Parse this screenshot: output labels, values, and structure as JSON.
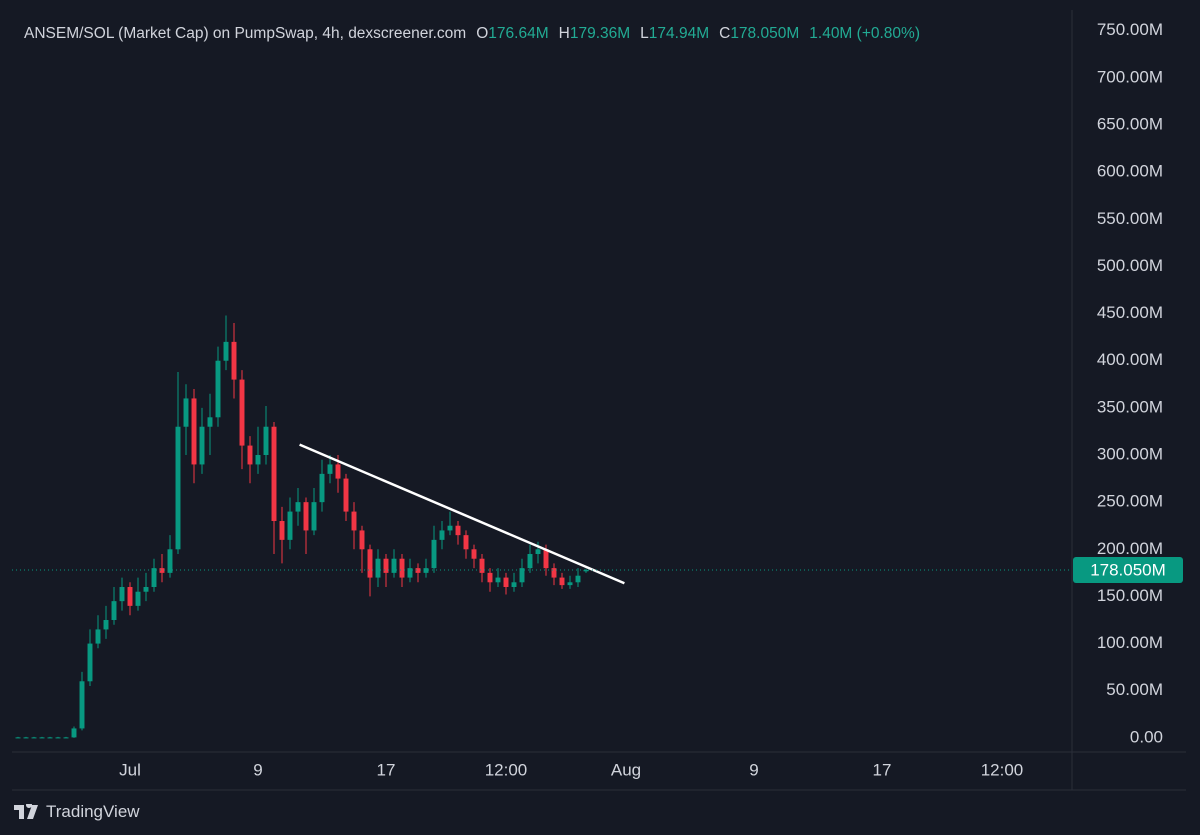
{
  "chart_data": {
    "type": "candlestick",
    "title": "ANSEM/SOL (Market Cap) on PumpSwap, 4h, dexscreener.com",
    "legend": {
      "o_label": "O",
      "o": "176.64M",
      "h_label": "H",
      "h": "179.36M",
      "l_label": "L",
      "l": "174.94M",
      "c_label": "C",
      "c": "178.050M",
      "change": "1.40M (+0.80%)"
    },
    "up_color": "#089981",
    "down_color": "#f23645",
    "x": [
      -6,
      -5.5,
      -5,
      -4.5,
      -4,
      -3.5,
      -3,
      -2.5,
      -2,
      -1.5,
      -1,
      -0.5,
      0,
      0.5,
      1,
      1.5,
      2,
      2.5,
      3,
      3.5,
      4,
      4.5,
      5,
      5.5,
      6,
      6.5,
      7,
      7.5,
      8,
      8.5,
      9,
      9.5,
      10,
      10.5,
      11,
      11.5,
      12,
      12.5,
      13,
      13.5,
      14,
      14.5,
      15,
      15.5,
      16,
      16.5,
      17,
      17.5,
      18,
      18.5,
      19,
      19.5,
      20,
      20.5,
      21,
      21.5,
      22,
      22.5,
      23,
      23.5,
      24,
      24.5,
      25,
      25.5,
      26,
      26.5,
      27,
      27.5,
      28,
      28.5,
      29,
      29.5
    ],
    "open": [
      0.5,
      0.5,
      0.5,
      0.5,
      0.5,
      0.5,
      0.5,
      0.5,
      10,
      60,
      100,
      115,
      125,
      145,
      160,
      140,
      155,
      160,
      180,
      175,
      200,
      330,
      360,
      290,
      330,
      340,
      400,
      420,
      380,
      310,
      290,
      300,
      330,
      230,
      210,
      240,
      250,
      220,
      250,
      280,
      290,
      275,
      240,
      220,
      200,
      170,
      190,
      175,
      190,
      170,
      180,
      175,
      180,
      210,
      220,
      225,
      215,
      200,
      190,
      175,
      165,
      170,
      160,
      165,
      180,
      195,
      200,
      180,
      170,
      162,
      165,
      176.64
    ],
    "high": [
      1,
      1,
      1,
      1,
      1,
      1,
      1,
      12,
      70,
      115,
      130,
      140,
      160,
      170,
      165,
      170,
      175,
      190,
      195,
      215,
      388,
      375,
      370,
      350,
      365,
      415,
      448,
      440,
      390,
      320,
      330,
      352,
      335,
      245,
      255,
      265,
      255,
      265,
      295,
      300,
      300,
      280,
      250,
      225,
      205,
      200,
      195,
      200,
      195,
      190,
      185,
      190,
      225,
      230,
      240,
      230,
      220,
      205,
      195,
      180,
      180,
      175,
      175,
      190,
      205,
      208,
      205,
      185,
      175,
      172,
      180,
      179.36
    ],
    "low": [
      0,
      0,
      0,
      0,
      0,
      0,
      0,
      0,
      8,
      55,
      95,
      105,
      120,
      135,
      130,
      135,
      145,
      155,
      165,
      170,
      195,
      300,
      270,
      280,
      300,
      330,
      390,
      360,
      285,
      270,
      280,
      290,
      195,
      185,
      200,
      225,
      195,
      215,
      240,
      270,
      260,
      230,
      200,
      175,
      150,
      160,
      160,
      170,
      160,
      165,
      165,
      170,
      175,
      200,
      215,
      205,
      190,
      180,
      165,
      155,
      160,
      152,
      155,
      160,
      175,
      185,
      172,
      162,
      158,
      158,
      160,
      174.94
    ],
    "close": [
      0.5,
      0.5,
      0.5,
      0.5,
      0.5,
      0.5,
      0.5,
      10,
      60,
      100,
      115,
      125,
      145,
      160,
      140,
      155,
      160,
      180,
      175,
      200,
      330,
      360,
      290,
      330,
      340,
      400,
      420,
      380,
      310,
      290,
      300,
      330,
      230,
      210,
      240,
      250,
      220,
      250,
      280,
      290,
      275,
      240,
      220,
      200,
      170,
      190,
      175,
      190,
      170,
      180,
      175,
      180,
      210,
      220,
      225,
      215,
      200,
      190,
      175,
      165,
      170,
      160,
      165,
      180,
      195,
      200,
      180,
      170,
      162,
      165,
      172,
      178.05
    ],
    "xlim": [
      -6.375,
      59.75
    ],
    "xticks": [
      {
        "value": 1,
        "label": "Jul"
      },
      9,
      17,
      {
        "value": 24.5,
        "label": "12:00"
      },
      {
        "value": 32,
        "label": "Aug"
      },
      {
        "value": 40,
        "label": "9"
      },
      {
        "value": 48,
        "label": "17"
      },
      {
        "value": 55.5,
        "label": "12:00"
      }
    ],
    "ylim": [
      -15,
      772
    ],
    "yticks": [
      {
        "value": 0,
        "label": "0.00"
      },
      {
        "value": 50,
        "label": "50.00M"
      },
      {
        "value": 100,
        "label": "100.00M"
      },
      {
        "value": 150,
        "label": "150.00M"
      },
      {
        "value": 200,
        "label": "200.00M"
      },
      {
        "value": 250,
        "label": "250.00M"
      },
      {
        "value": 300,
        "label": "300.00M"
      },
      {
        "value": 350,
        "label": "350.00M"
      },
      {
        "value": 400,
        "label": "400.00M"
      },
      {
        "value": 450,
        "label": "450.00M"
      },
      {
        "value": 500,
        "label": "500.00M"
      },
      {
        "value": 550,
        "label": "550.00M"
      },
      {
        "value": 600,
        "label": "600.00M"
      },
      {
        "value": 650,
        "label": "650.00M"
      },
      {
        "value": 700,
        "label": "700.00M"
      },
      {
        "value": 750,
        "label": "750.00M"
      }
    ],
    "grid": false,
    "last_price": 178.05,
    "last_price_label": "178.050M",
    "last_price_color": "#089981",
    "trendline": {
      "x": [
        11.6,
        31.9
      ],
      "values": [
        311,
        164
      ],
      "color": "#ffffff"
    }
  },
  "footer": {
    "brand": "TradingView"
  }
}
